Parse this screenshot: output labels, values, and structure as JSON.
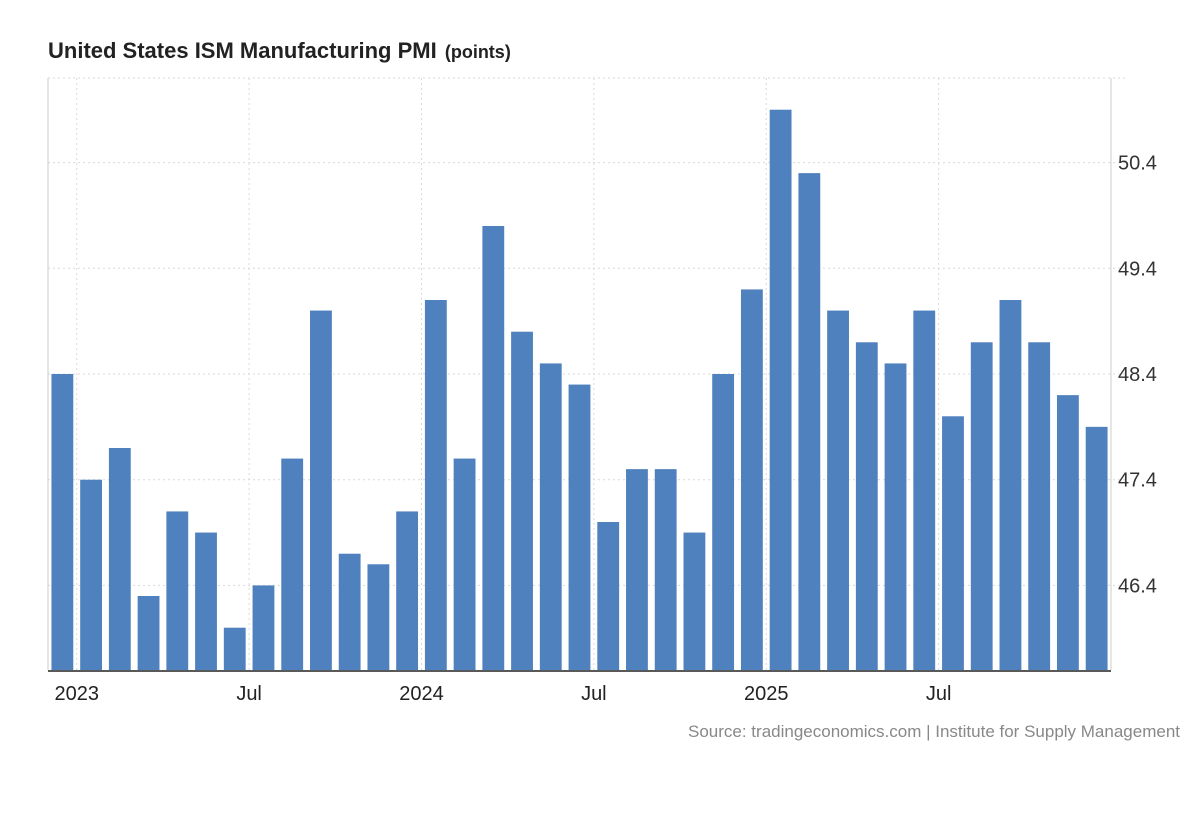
{
  "chart_data": {
    "type": "bar",
    "title": "United States ISM Manufacturing PMI",
    "unit": "(points)",
    "source": "Source: tradingeconomics.com | Institute for Supply Management",
    "bar_color": "#4e81bd",
    "grid_color": "#d9d9d9",
    "axis_color": "#222222",
    "x_tick_labels": [
      "2023",
      "Jul",
      "2024",
      "Jul",
      "2025",
      "Jul"
    ],
    "x_tick_indices": [
      1,
      7,
      13,
      19,
      25,
      31
    ],
    "y_ticks": [
      46.4,
      47.4,
      48.4,
      49.4,
      50.4
    ],
    "y_tick_labels": [
      "46.4",
      "47.4",
      "48.4",
      "49.4",
      "50.4"
    ],
    "ylim": [
      45.6,
      51.2
    ],
    "categories": [
      "Dec 2022",
      "Jan 2023",
      "Feb 2023",
      "Mar 2023",
      "Apr 2023",
      "May 2023",
      "Jun 2023",
      "Jul 2023",
      "Aug 2023",
      "Sep 2023",
      "Oct 2023",
      "Nov 2023",
      "Dec 2023",
      "Jan 2024",
      "Feb 2024",
      "Mar 2024",
      "Apr 2024",
      "May 2024",
      "Jun 2024",
      "Jul 2024",
      "Aug 2024",
      "Sep 2024",
      "Oct 2024",
      "Nov 2024",
      "Dec 2024",
      "Jan 2025",
      "Feb 2025",
      "Mar 2025",
      "Apr 2025",
      "May 2025",
      "Jun 2025",
      "Jul 2025",
      "Aug 2025",
      "Sep 2025",
      "Oct 2025",
      "Nov 2025",
      "Dec 2025"
    ],
    "values": [
      48.4,
      47.4,
      47.7,
      46.3,
      47.1,
      46.9,
      46.0,
      46.4,
      47.6,
      49.0,
      46.7,
      46.6,
      47.1,
      49.1,
      47.6,
      49.8,
      48.8,
      48.5,
      48.3,
      47.0,
      47.5,
      47.5,
      46.9,
      48.4,
      49.2,
      50.9,
      50.3,
      49.0,
      48.7,
      48.5,
      49.0,
      48.0,
      48.7,
      49.1,
      48.7,
      48.2,
      47.9
    ]
  }
}
